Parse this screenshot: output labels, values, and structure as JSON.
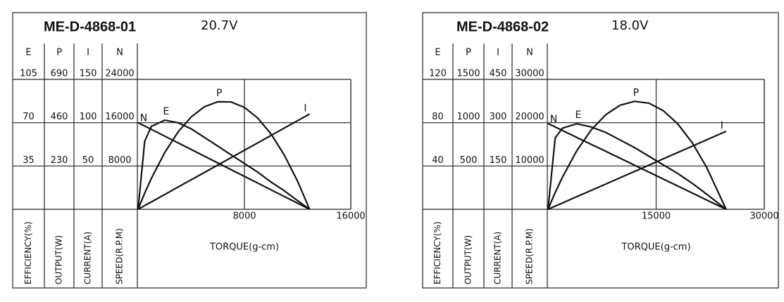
{
  "chart_data": [
    {
      "type": "line",
      "title": "ME-D-4868-01",
      "voltage": "20.7V",
      "x_label": "TORQUE(g-cm)",
      "xlim": [
        0,
        16000
      ],
      "xticks": [
        8000,
        16000
      ],
      "x": [
        0,
        500,
        1000,
        2000,
        3000,
        4000,
        5000,
        6000,
        7000,
        8000,
        9000,
        10000,
        11000,
        12000,
        12900
      ],
      "axes": [
        {
          "name": "E",
          "label": "EFFICIENCY(%)",
          "ylim": [
            0,
            105
          ],
          "yticks": [
            35,
            70,
            105
          ],
          "values": [
            0,
            55,
            67,
            72,
            70,
            65,
            58,
            51,
            44,
            37,
            30,
            22,
            15,
            7,
            0
          ]
        },
        {
          "name": "P",
          "label": "OUTPUT(W)",
          "ylim": [
            0,
            690
          ],
          "yticks": [
            230,
            460,
            690
          ],
          "values": [
            0,
            86,
            164,
            301,
            410,
            491,
            545,
            571,
            570,
            541,
            484,
            400,
            288,
            149,
            0
          ]
        },
        {
          "name": "I",
          "label": "CURRENT(A)",
          "ylim": [
            0,
            150
          ],
          "yticks": [
            50,
            100,
            150
          ],
          "values": [
            0,
            4.3,
            8.5,
            17.1,
            25.6,
            34.1,
            42.6,
            51.2,
            59.7,
            68.2,
            76.7,
            85.3,
            93.8,
            102.3,
            110
          ]
        },
        {
          "name": "N",
          "label": "SPEED(R.P.M)",
          "ylim": [
            0,
            24000
          ],
          "yticks": [
            8000,
            16000,
            24000
          ],
          "values": [
            16000,
            15380,
            14760,
            13519,
            12279,
            11039,
            9798,
            8558,
            7318,
            6078,
            4837,
            3597,
            2357,
            1116,
            0
          ]
        }
      ]
    },
    {
      "type": "line",
      "title": "ME-D-4868-02",
      "voltage": "18.0V",
      "x_label": "TORQUE(g-cm)",
      "xlim": [
        0,
        30000
      ],
      "xticks": [
        15000,
        30000
      ],
      "x": [
        0,
        1000,
        2000,
        4000,
        6000,
        8000,
        10000,
        12000,
        14000,
        16000,
        18000,
        20000,
        22000,
        24700
      ],
      "axes": [
        {
          "name": "E",
          "label": "EFFICIENCY(%)",
          "ylim": [
            0,
            120
          ],
          "yticks": [
            40,
            80,
            120
          ],
          "values": [
            0,
            66,
            75,
            79,
            76,
            71,
            64,
            57,
            49,
            41,
            33,
            24,
            14,
            0
          ]
        },
        {
          "name": "P",
          "label": "OUTPUT(W)",
          "ylim": [
            0,
            1500
          ],
          "yticks": [
            500,
            1000,
            1500
          ],
          "values": [
            0,
            194,
            371,
            677,
            917,
            1092,
            1202,
            1246,
            1225,
            1138,
            986,
            769,
            486,
            0
          ]
        },
        {
          "name": "I",
          "label": "CURRENT(A)",
          "ylim": [
            0,
            450
          ],
          "yticks": [
            150,
            300,
            450
          ],
          "values": [
            0,
            10.9,
            21.9,
            43.7,
            65.6,
            87.4,
            109.3,
            131.2,
            153.0,
            174.9,
            196.8,
            218.6,
            240.5,
            270
          ]
        },
        {
          "name": "N",
          "label": "SPEED(R.P.M)",
          "ylim": [
            0,
            30000
          ],
          "yticks": [
            10000,
            20000,
            30000
          ],
          "values": [
            19800,
            18998,
            18197,
            16594,
            14990,
            13387,
            11784,
            10181,
            8578,
            6974,
            5371,
            3768,
            2164,
            0
          ]
        }
      ]
    }
  ]
}
